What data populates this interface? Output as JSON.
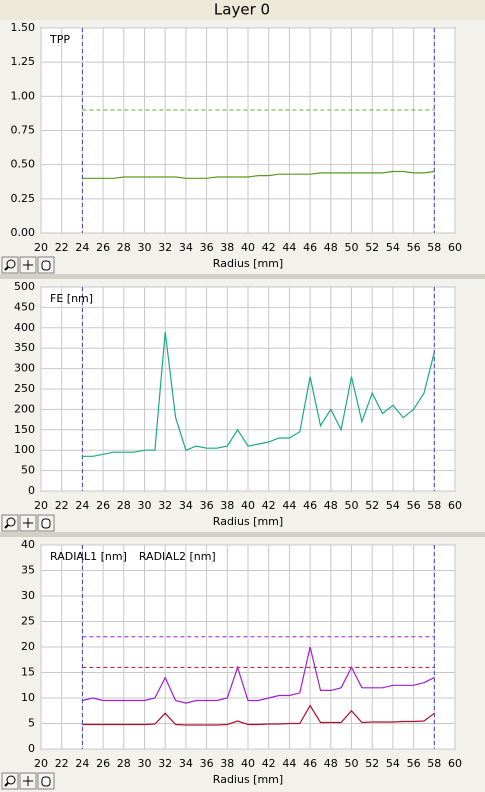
{
  "title": "Layer 0",
  "chart_data": [
    {
      "type": "line",
      "xlabel": "Radius [mm]",
      "x": [
        24,
        25,
        26,
        27,
        28,
        29,
        30,
        31,
        32,
        33,
        34,
        35,
        36,
        37,
        38,
        39,
        40,
        41,
        42,
        43,
        44,
        45,
        46,
        47,
        48,
        49,
        50,
        51,
        52,
        53,
        54,
        55,
        56,
        57,
        58
      ],
      "series": [
        {
          "name": "TPP",
          "color": "#5a9a1a",
          "values": [
            0.4,
            0.4,
            0.4,
            0.4,
            0.41,
            0.41,
            0.41,
            0.41,
            0.41,
            0.41,
            0.4,
            0.4,
            0.4,
            0.41,
            0.41,
            0.41,
            0.41,
            0.42,
            0.42,
            0.43,
            0.43,
            0.43,
            0.43,
            0.44,
            0.44,
            0.44,
            0.44,
            0.44,
            0.44,
            0.44,
            0.45,
            0.45,
            0.44,
            0.44,
            0.45
          ]
        }
      ],
      "xlim": [
        20,
        60
      ],
      "xticks": [
        20,
        22,
        24,
        26,
        28,
        30,
        32,
        34,
        36,
        38,
        40,
        42,
        44,
        46,
        48,
        50,
        52,
        54,
        56,
        58,
        60
      ],
      "ylim": [
        0,
        1.5
      ],
      "yticks": [
        {
          "value": 0,
          "label": "0.00"
        },
        {
          "value": 0.25,
          "label": "0.25"
        },
        {
          "value": 0.5,
          "label": "0.50"
        },
        {
          "value": 0.75,
          "label": "0.75"
        },
        {
          "value": 1,
          "label": "1.00"
        },
        {
          "value": 1.25,
          "label": "1.25"
        },
        {
          "value": 1.5,
          "label": "1.50"
        }
      ],
      "vlines": [
        24,
        58
      ],
      "vline_color": "#4040d0",
      "hlines": [
        {
          "value": 0.9,
          "color": "#6aaa2a"
        }
      ],
      "grid": true
    },
    {
      "type": "line",
      "xlabel": "Radius [mm]",
      "x": [
        24,
        25,
        26,
        27,
        28,
        29,
        30,
        31,
        32,
        33,
        34,
        35,
        36,
        37,
        38,
        39,
        40,
        41,
        42,
        43,
        44,
        45,
        46,
        47,
        48,
        49,
        50,
        51,
        52,
        53,
        54,
        55,
        56,
        57,
        58
      ],
      "series": [
        {
          "name": "FE [nm]",
          "color": "#1aaa88",
          "values": [
            85,
            85,
            90,
            95,
            95,
            95,
            100,
            100,
            390,
            180,
            100,
            110,
            105,
            105,
            110,
            150,
            110,
            115,
            120,
            130,
            130,
            145,
            280,
            160,
            200,
            150,
            280,
            170,
            240,
            190,
            210,
            180,
            200,
            240,
            340
          ]
        }
      ],
      "xlim": [
        20,
        60
      ],
      "xticks": [
        20,
        22,
        24,
        26,
        28,
        30,
        32,
        34,
        36,
        38,
        40,
        42,
        44,
        46,
        48,
        50,
        52,
        54,
        56,
        58,
        60
      ],
      "ylim": [
        0,
        500
      ],
      "yticks": [
        0,
        50,
        100,
        150,
        200,
        250,
        300,
        350,
        400,
        450,
        500
      ],
      "vlines": [
        24,
        58
      ],
      "vline_color": "#4040d0",
      "hlines": [],
      "grid": true
    },
    {
      "type": "line",
      "xlabel": "Radius [mm]",
      "x": [
        24,
        25,
        26,
        27,
        28,
        29,
        30,
        31,
        32,
        33,
        34,
        35,
        36,
        37,
        38,
        39,
        40,
        41,
        42,
        43,
        44,
        45,
        46,
        47,
        48,
        49,
        50,
        51,
        52,
        53,
        54,
        55,
        56,
        57,
        58
      ],
      "series": [
        {
          "name": "RADIAL1 [nm]",
          "color": "#a020d0",
          "values": [
            9.5,
            10,
            9.5,
            9.5,
            9.5,
            9.5,
            9.5,
            10,
            14,
            9.5,
            9,
            9.5,
            9.5,
            9.5,
            10,
            16,
            9.5,
            9.5,
            10,
            10.5,
            10.5,
            11,
            20,
            11.5,
            11.5,
            12,
            16,
            12,
            12,
            12,
            12.5,
            12.5,
            12.5,
            13,
            14
          ]
        },
        {
          "name": "RADIAL2 [nm]",
          "color": "#b01030",
          "values": [
            4.8,
            4.8,
            4.8,
            4.8,
            4.8,
            4.8,
            4.8,
            4.9,
            7,
            4.8,
            4.7,
            4.7,
            4.7,
            4.7,
            4.8,
            5.5,
            4.8,
            4.8,
            4.9,
            4.9,
            5,
            5,
            8.5,
            5.2,
            5.2,
            5.2,
            7.5,
            5.2,
            5.3,
            5.3,
            5.3,
            5.4,
            5.4,
            5.5,
            7
          ]
        }
      ],
      "xlim": [
        20,
        60
      ],
      "xticks": [
        20,
        22,
        24,
        26,
        28,
        30,
        32,
        34,
        36,
        38,
        40,
        42,
        44,
        46,
        48,
        50,
        52,
        54,
        56,
        58,
        60
      ],
      "ylim": [
        0,
        40
      ],
      "yticks": [
        0,
        5,
        10,
        15,
        20,
        25,
        30,
        35,
        40
      ],
      "vlines": [
        24,
        58
      ],
      "vline_color": "#4040d0",
      "hlines": [
        {
          "value": 22,
          "color": "#a020d0"
        },
        {
          "value": 16,
          "color": "#b01030"
        }
      ],
      "grid": true
    }
  ]
}
